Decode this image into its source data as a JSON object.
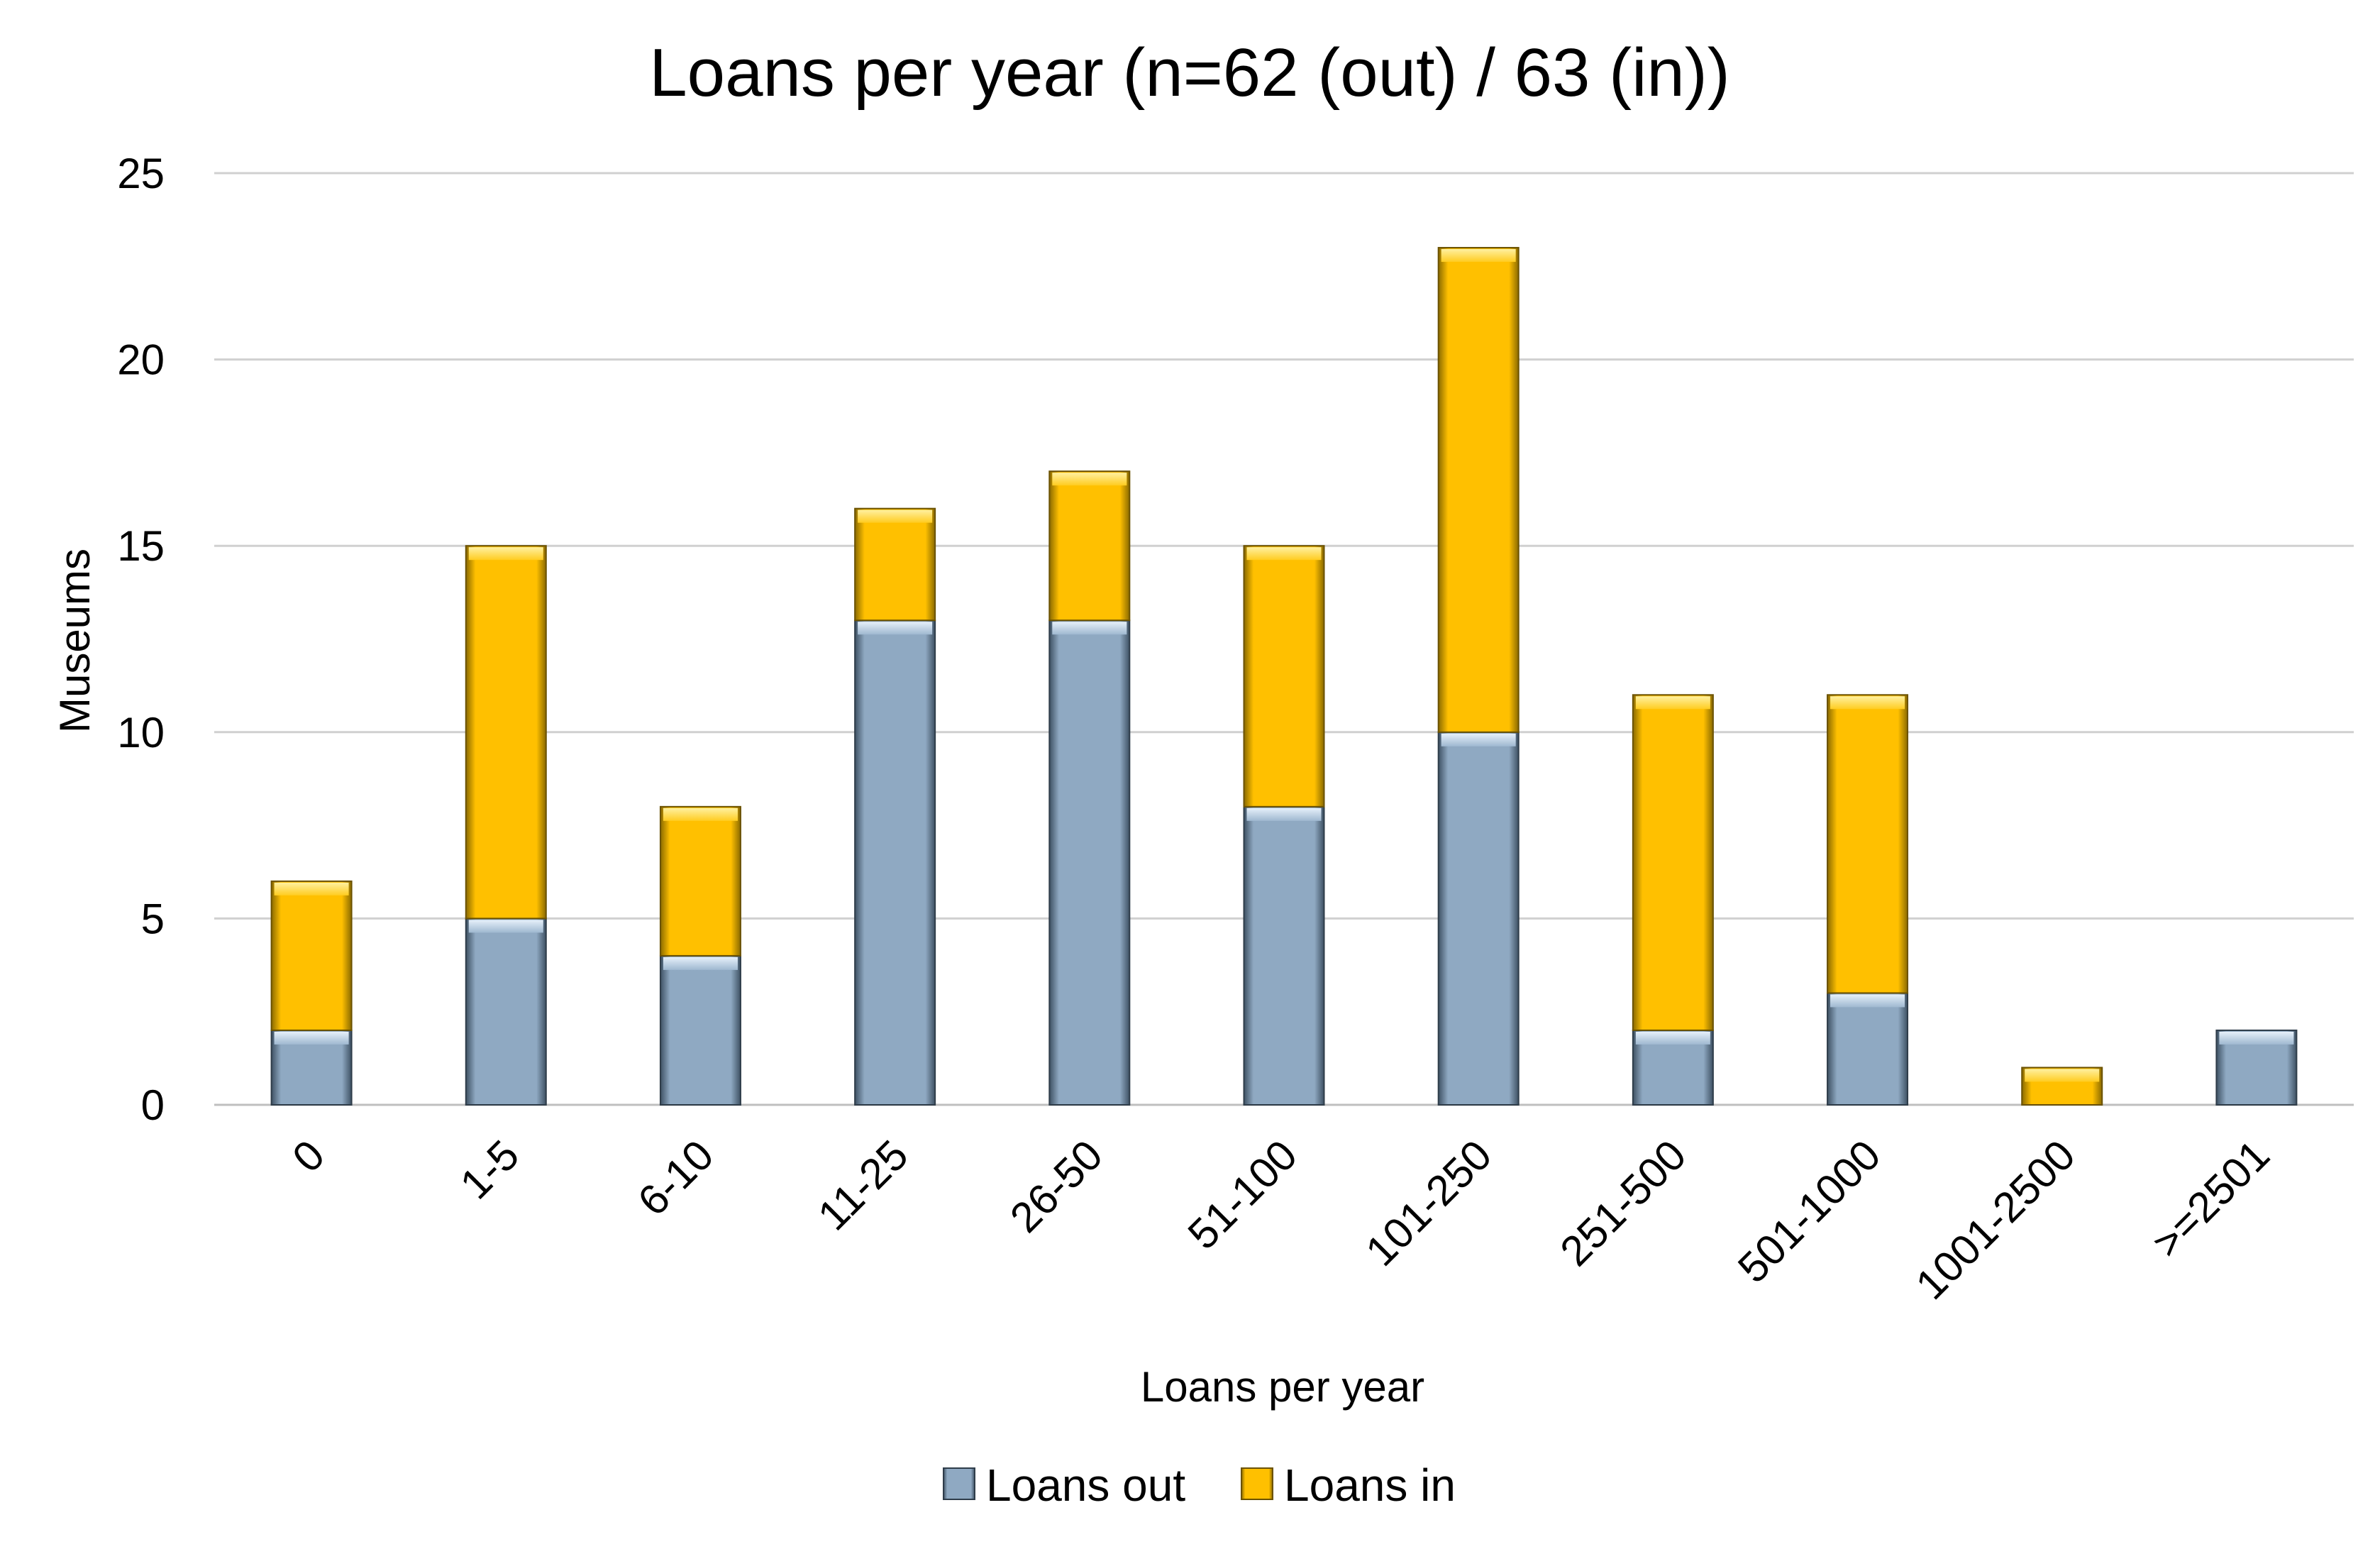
{
  "chart_data": {
    "type": "bar",
    "stacked": true,
    "title": "Loans per year (n=62 (out) / 63 (in))",
    "xlabel": "Loans per year",
    "ylabel": "Museums",
    "ylim": [
      0,
      25
    ],
    "yticks": [
      "0",
      "5",
      "10",
      "15",
      "20",
      "25"
    ],
    "grid": true,
    "legend_position": "bottom",
    "categories": [
      "0",
      "1-5",
      "6-10",
      "11-25",
      "26-50",
      "51-100",
      "101-250",
      "251-500",
      "501-1000",
      "1001-2500",
      ">=2501"
    ],
    "series": [
      {
        "name": "Loans out",
        "color": "#8FA9C2",
        "values": [
          2,
          5,
          4,
          13,
          13,
          8,
          10,
          2,
          3,
          0,
          2
        ]
      },
      {
        "name": "Loans in",
        "color": "#FFC000",
        "values": [
          4,
          10,
          4,
          3,
          4,
          7,
          13,
          9,
          8,
          1,
          0
        ]
      }
    ]
  }
}
